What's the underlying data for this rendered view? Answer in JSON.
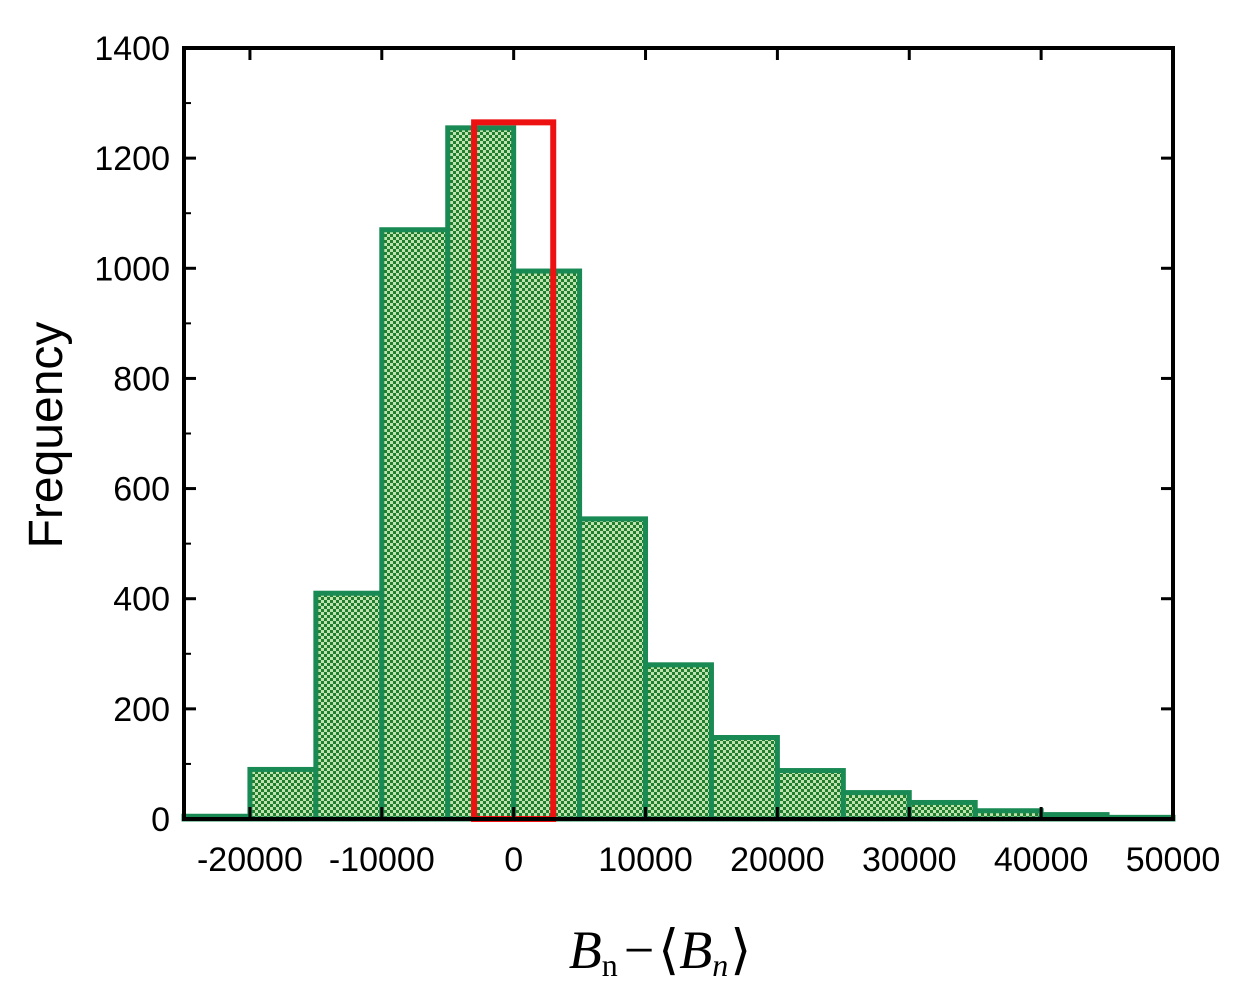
{
  "chart_data": {
    "type": "bar",
    "ylabel": "Frequency",
    "xlabel": {
      "base": "B",
      "sub": "n",
      "op": "−",
      "lbracket": "⟨",
      "rbracket": "⟩",
      "base2": "B",
      "sub2": "n"
    },
    "xlim": [
      -25000,
      50000
    ],
    "ylim": [
      0,
      1400
    ],
    "xticks": [
      -20000,
      -10000,
      0,
      10000,
      20000,
      30000,
      40000,
      50000
    ],
    "xtick_labels": [
      "-20000",
      "-10000",
      "0",
      "10000",
      "20000",
      "30000",
      "40000",
      "50000"
    ],
    "yticks": [
      0,
      200,
      400,
      600,
      800,
      1000,
      1200,
      1400
    ],
    "ytick_labels": [
      "0",
      "200",
      "400",
      "600",
      "800",
      "1000",
      "1200",
      "1400"
    ],
    "bin_width": 5000,
    "series": [
      {
        "color": "#1a8a55",
        "fill": "#2e9e3a",
        "bins": [
          {
            "x0": -25000,
            "x1": -20000,
            "value": 5
          },
          {
            "x0": -20000,
            "x1": -15000,
            "value": 90
          },
          {
            "x0": -15000,
            "x1": -10000,
            "value": 410
          },
          {
            "x0": -10000,
            "x1": -5000,
            "value": 1070
          },
          {
            "x0": -5000,
            "x1": 0,
            "value": 1255
          },
          {
            "x0": 0,
            "x1": 5000,
            "value": 995
          },
          {
            "x0": 5000,
            "x1": 10000,
            "value": 545
          },
          {
            "x0": 10000,
            "x1": 15000,
            "value": 280
          },
          {
            "x0": 15000,
            "x1": 20000,
            "value": 148
          },
          {
            "x0": 20000,
            "x1": 25000,
            "value": 88
          },
          {
            "x0": 25000,
            "x1": 30000,
            "value": 48
          },
          {
            "x0": 30000,
            "x1": 35000,
            "value": 30
          },
          {
            "x0": 35000,
            "x1": 40000,
            "value": 15
          },
          {
            "x0": 40000,
            "x1": 45000,
            "value": 8
          },
          {
            "x0": 45000,
            "x1": 50000,
            "value": 3
          }
        ]
      },
      {
        "color": "#ee1111",
        "bins": [
          {
            "x0": -3000,
            "x1": 3000,
            "value": 1265
          }
        ]
      }
    ]
  }
}
